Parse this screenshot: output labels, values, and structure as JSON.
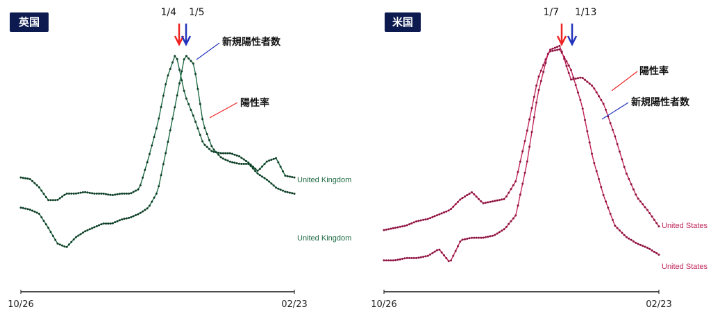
{
  "colors": {
    "uk_line": "#1f6b45",
    "uk_dots": "#0f3d26",
    "us_line": "#c0245a",
    "us_dots": "#8c1440",
    "arrow_red": "#ee2222",
    "arrow_blue": "#2233bb",
    "badge_bg": "#0d1a4f"
  },
  "chart_data": [
    {
      "type": "line",
      "badge": "英国",
      "x_ticks": [
        "10/26",
        "02/23"
      ],
      "xlim": [
        "10/26",
        "02/23"
      ],
      "grid": false,
      "peak_markers": [
        {
          "label": "1/4",
          "color": "red"
        },
        {
          "label": "1/5",
          "color": "blue"
        }
      ],
      "annotations": [
        "新規陽性者数",
        "陽性率"
      ],
      "series": [
        {
          "name": "United Kingdom",
          "peak_marker": "1/4",
          "values": [
            0.2,
            0.19,
            0.17,
            0.1,
            0.02,
            0.0,
            0.05,
            0.08,
            0.1,
            0.12,
            0.12,
            0.14,
            0.15,
            0.17,
            0.2,
            0.28,
            0.5,
            0.73,
            0.97,
            0.92,
            0.62,
            0.5,
            0.45,
            0.43,
            0.42,
            0.42,
            0.37,
            0.34,
            0.3,
            0.28,
            0.27
          ]
        },
        {
          "name": "United Kingdom",
          "peak_marker": "1/5",
          "values": [
            0.21,
            0.2,
            0.15,
            0.07,
            0.07,
            0.11,
            0.11,
            0.12,
            0.11,
            0.11,
            0.1,
            0.11,
            0.11,
            0.14,
            0.33,
            0.54,
            0.82,
            0.98,
            0.72,
            0.58,
            0.42,
            0.37,
            0.36,
            0.36,
            0.34,
            0.3,
            0.25,
            0.31,
            0.33,
            0.22,
            0.21
          ]
        }
      ]
    },
    {
      "type": "line",
      "badge": "米国",
      "x_ticks": [
        "10/26",
        "02/23"
      ],
      "xlim": [
        "10/26",
        "02/23"
      ],
      "grid": false,
      "peak_markers": [
        {
          "label": "1/7",
          "color": "red"
        },
        {
          "label": "1/13",
          "color": "blue"
        }
      ],
      "annotations": [
        "陽性率",
        "新規陽性者数"
      ],
      "series": [
        {
          "name": "United States",
          "peak_marker": "1/7",
          "values": [
            0.18,
            0.19,
            0.2,
            0.22,
            0.23,
            0.25,
            0.27,
            0.32,
            0.35,
            0.3,
            0.31,
            0.32,
            0.4,
            0.62,
            0.86,
            0.98,
            0.99,
            0.9,
            0.74,
            0.5,
            0.33,
            0.2,
            0.15,
            0.12,
            0.1,
            0.07
          ]
        },
        {
          "name": "United States",
          "peak_marker": "1/13",
          "values": [
            0.05,
            0.05,
            0.06,
            0.06,
            0.07,
            0.1,
            0.04,
            0.14,
            0.15,
            0.15,
            0.16,
            0.19,
            0.25,
            0.48,
            0.79,
            0.98,
            1.0,
            0.85,
            0.86,
            0.82,
            0.74,
            0.6,
            0.44,
            0.33,
            0.27,
            0.2
          ]
        }
      ]
    }
  ]
}
